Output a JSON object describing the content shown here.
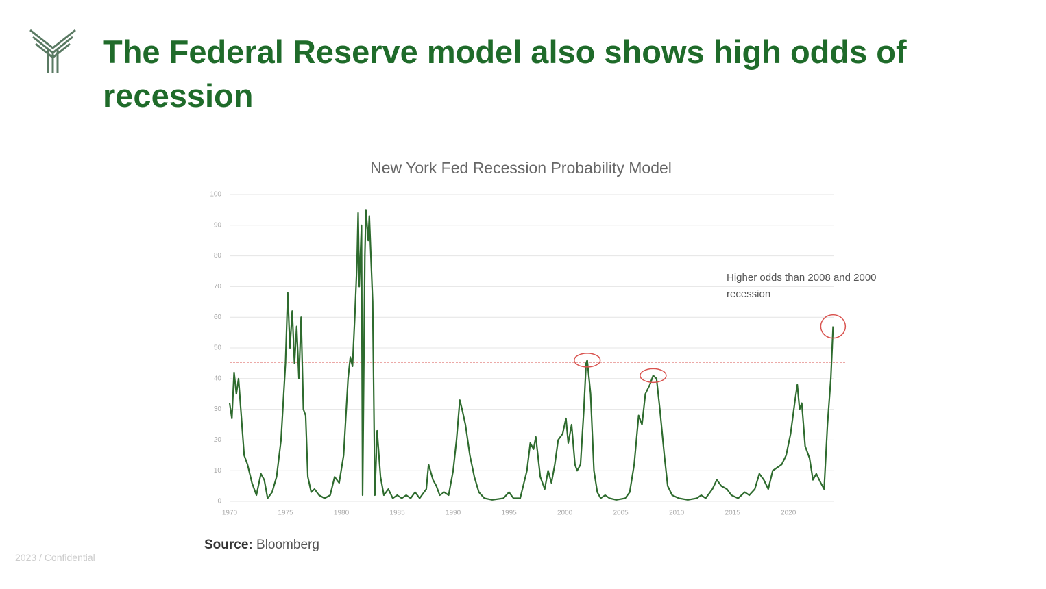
{
  "title": "The Federal Reserve model also shows high odds of recession",
  "footer": "2023 / Confidential",
  "source_label": "Source:",
  "source": "Bloomberg",
  "chart_data": {
    "type": "line",
    "title": "New York Fed Recession Probability Model",
    "annotation": "Higher odds than 2008 and 2000 recession",
    "color": "#2e6b2e",
    "xlim": [
      1970,
      2024.1
    ],
    "xticks": [
      1970,
      1975,
      1980,
      1985,
      1990,
      1995,
      2000,
      2005,
      2010,
      2015,
      2020
    ],
    "ylim": [
      0,
      100
    ],
    "yticks": [
      0,
      10,
      20,
      30,
      40,
      50,
      60,
      70,
      80,
      90,
      100
    ],
    "grid": true,
    "reference_line": {
      "value": 45.3,
      "color": "#d9534f"
    },
    "highlighted_points": [
      {
        "x": 2002.0,
        "y": 46
      },
      {
        "x": 2007.9,
        "y": 41
      },
      {
        "x": 2024.0,
        "y": 57
      }
    ],
    "highlight_color": "#d9534f",
    "x": [
      1970.0,
      1970.2,
      1970.4,
      1970.6,
      1970.8,
      1971.0,
      1971.3,
      1971.6,
      1972.0,
      1972.4,
      1972.8,
      1973.1,
      1973.4,
      1973.8,
      1974.2,
      1974.6,
      1975.0,
      1975.2,
      1975.4,
      1975.6,
      1975.8,
      1976.0,
      1976.2,
      1976.4,
      1976.6,
      1976.8,
      1977.0,
      1977.3,
      1977.6,
      1978.0,
      1978.5,
      1979.0,
      1979.4,
      1979.8,
      1980.2,
      1980.6,
      1980.8,
      1981.0,
      1981.2,
      1981.4,
      1981.5,
      1981.6,
      1981.8,
      1981.9,
      1982.1,
      1982.2,
      1982.4,
      1982.5,
      1982.8,
      1983.0,
      1983.2,
      1983.5,
      1983.8,
      1984.2,
      1984.6,
      1985.0,
      1985.4,
      1985.8,
      1986.2,
      1986.6,
      1987.0,
      1987.6,
      1987.8,
      1988.2,
      1988.5,
      1988.8,
      1989.2,
      1989.6,
      1990.0,
      1990.3,
      1990.6,
      1990.8,
      1991.1,
      1991.5,
      1991.9,
      1992.3,
      1992.8,
      1993.5,
      1994.5,
      1995.0,
      1995.4,
      1996.0,
      1996.6,
      1996.9,
      1997.2,
      1997.4,
      1997.8,
      1998.2,
      1998.5,
      1998.8,
      1999.1,
      1999.4,
      1999.8,
      2000.1,
      2000.3,
      2000.6,
      2000.9,
      2001.1,
      2001.4,
      2001.7,
      2001.9,
      2002.0,
      2002.3,
      2002.6,
      2002.9,
      2003.2,
      2003.6,
      2004.0,
      2004.6,
      2005.4,
      2005.8,
      2006.2,
      2006.6,
      2006.9,
      2007.2,
      2007.6,
      2007.9,
      2008.2,
      2008.5,
      2008.9,
      2009.2,
      2009.6,
      2010.2,
      2011.0,
      2011.8,
      2012.2,
      2012.6,
      2013.2,
      2013.6,
      2014.0,
      2014.5,
      2014.9,
      2015.5,
      2016.1,
      2016.5,
      2017.0,
      2017.4,
      2017.8,
      2018.2,
      2018.6,
      2019.0,
      2019.4,
      2019.8,
      2020.2,
      2020.6,
      2020.8,
      2021.0,
      2021.2,
      2021.5,
      2021.9,
      2022.2,
      2022.5,
      2022.9,
      2023.2,
      2023.5,
      2023.8,
      2024.0
    ],
    "values": [
      32,
      27,
      42,
      35,
      40,
      30,
      15,
      12,
      6,
      2,
      9,
      7,
      1,
      3,
      8,
      20,
      45,
      68,
      50,
      62,
      45,
      57,
      40,
      60,
      30,
      28,
      8,
      3,
      4,
      2,
      1,
      2,
      8,
      6,
      15,
      40,
      47,
      44,
      60,
      78,
      94,
      70,
      90,
      2,
      80,
      95,
      85,
      93,
      65,
      2,
      23,
      8,
      2,
      4,
      1,
      2,
      1,
      2,
      1,
      3,
      1,
      4,
      12,
      7,
      5,
      2,
      3,
      2,
      10,
      20,
      33,
      30,
      25,
      15,
      8,
      3,
      1,
      0.5,
      1,
      3,
      1,
      1,
      10,
      19,
      17,
      21,
      8,
      4,
      10,
      6,
      12,
      20,
      22,
      27,
      19,
      25,
      12,
      10,
      12,
      30,
      45,
      46,
      35,
      10,
      3,
      1,
      2,
      1,
      0.5,
      1,
      3,
      12,
      28,
      25,
      35,
      38,
      41,
      40,
      30,
      15,
      5,
      2,
      1,
      0.5,
      1,
      2,
      1,
      4,
      7,
      5,
      4,
      2,
      1,
      3,
      2,
      4,
      9,
      7,
      4,
      10,
      11,
      12,
      15,
      22,
      33,
      38,
      30,
      32,
      18,
      14,
      7,
      9,
      6,
      4,
      25,
      40,
      57
    ]
  }
}
